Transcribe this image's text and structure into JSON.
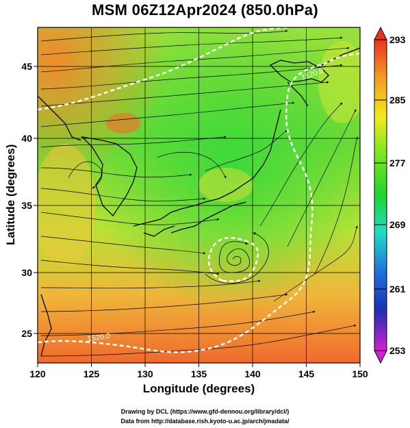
{
  "title": "MSM 06Z12Apr2024 (850.0hPa)",
  "x_axis": {
    "label": "Longitude (degrees)",
    "ticks": [
      "120",
      "125",
      "130",
      "135",
      "140",
      "145",
      "150"
    ]
  },
  "y_axis": {
    "label": "Latitude  (degrees)",
    "ticks": [
      "25",
      "30",
      "35",
      "40",
      "45"
    ]
  },
  "colorbar": {
    "labels": [
      "293",
      "285",
      "277",
      "269",
      "261",
      "253"
    ]
  },
  "contour_labels": [
    "1520.0",
    "1520.0"
  ],
  "credits": {
    "line1": "Drawing by DCL (https://www.gfd-dennou.org/library/dcl/)",
    "line2": "Data from http://database.rish.kyoto-u.ac.jp/arch/jmadata/"
  }
}
